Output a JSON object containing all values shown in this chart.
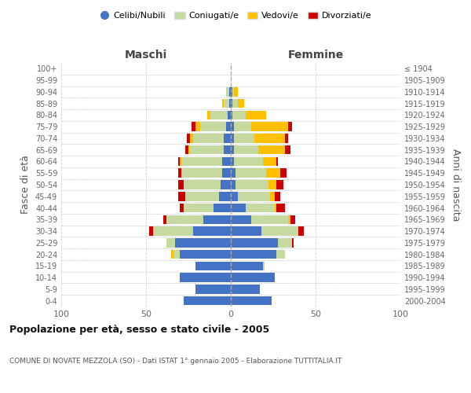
{
  "age_groups": [
    "0-4",
    "5-9",
    "10-14",
    "15-19",
    "20-24",
    "25-29",
    "30-34",
    "35-39",
    "40-44",
    "45-49",
    "50-54",
    "55-59",
    "60-64",
    "65-69",
    "70-74",
    "75-79",
    "80-84",
    "85-89",
    "90-94",
    "95-99",
    "100+"
  ],
  "birth_years": [
    "2000-2004",
    "1995-1999",
    "1990-1994",
    "1985-1989",
    "1980-1984",
    "1975-1979",
    "1970-1974",
    "1965-1969",
    "1960-1964",
    "1955-1959",
    "1950-1954",
    "1945-1949",
    "1940-1944",
    "1935-1939",
    "1930-1934",
    "1925-1929",
    "1920-1924",
    "1915-1919",
    "1910-1914",
    "1905-1909",
    "≤ 1904"
  ],
  "maschi": {
    "celibi": [
      28,
      21,
      30,
      21,
      30,
      33,
      22,
      16,
      10,
      7,
      6,
      5,
      5,
      4,
      4,
      3,
      2,
      1,
      1,
      0,
      0
    ],
    "coniugati": [
      0,
      0,
      0,
      0,
      4,
      5,
      24,
      22,
      18,
      20,
      22,
      24,
      24,
      20,
      18,
      15,
      10,
      3,
      2,
      0,
      0
    ],
    "vedovi": [
      0,
      0,
      0,
      0,
      1,
      0,
      0,
      0,
      0,
      0,
      0,
      0,
      1,
      1,
      2,
      3,
      2,
      1,
      0,
      0,
      0
    ],
    "divorziati": [
      0,
      0,
      0,
      0,
      0,
      0,
      2,
      2,
      2,
      4,
      3,
      2,
      1,
      2,
      2,
      2,
      0,
      0,
      0,
      0,
      0
    ]
  },
  "femmine": {
    "nubili": [
      24,
      17,
      26,
      19,
      27,
      28,
      18,
      12,
      9,
      4,
      3,
      3,
      2,
      2,
      2,
      2,
      1,
      1,
      1,
      0,
      0
    ],
    "coniugate": [
      0,
      0,
      0,
      1,
      5,
      8,
      22,
      22,
      17,
      19,
      19,
      18,
      17,
      14,
      12,
      10,
      8,
      3,
      1,
      0,
      0
    ],
    "vedove": [
      0,
      0,
      0,
      0,
      0,
      0,
      0,
      1,
      1,
      3,
      5,
      8,
      8,
      16,
      18,
      22,
      12,
      4,
      2,
      0,
      0
    ],
    "divorziate": [
      0,
      0,
      0,
      0,
      0,
      1,
      3,
      3,
      5,
      3,
      4,
      4,
      1,
      3,
      2,
      2,
      0,
      0,
      0,
      0,
      0
    ]
  },
  "colors": {
    "celibi_nubili": "#4472c4",
    "coniugati": "#c5d9a0",
    "vedovi": "#ffc000",
    "divorziati": "#cc0000"
  },
  "xlim": 100,
  "title": "Popolazione per età, sesso e stato civile - 2005",
  "subtitle": "COMUNE DI NOVATE MEZZOLA (SO) - Dati ISTAT 1° gennaio 2005 - Elaborazione TUTTITALIA.IT",
  "ylabel_left": "Fasce di età",
  "ylabel_right": "Anni di nascita",
  "xlabel_left": "Maschi",
  "xlabel_right": "Femmine",
  "bg_color": "#ffffff",
  "grid_color": "#cccccc"
}
